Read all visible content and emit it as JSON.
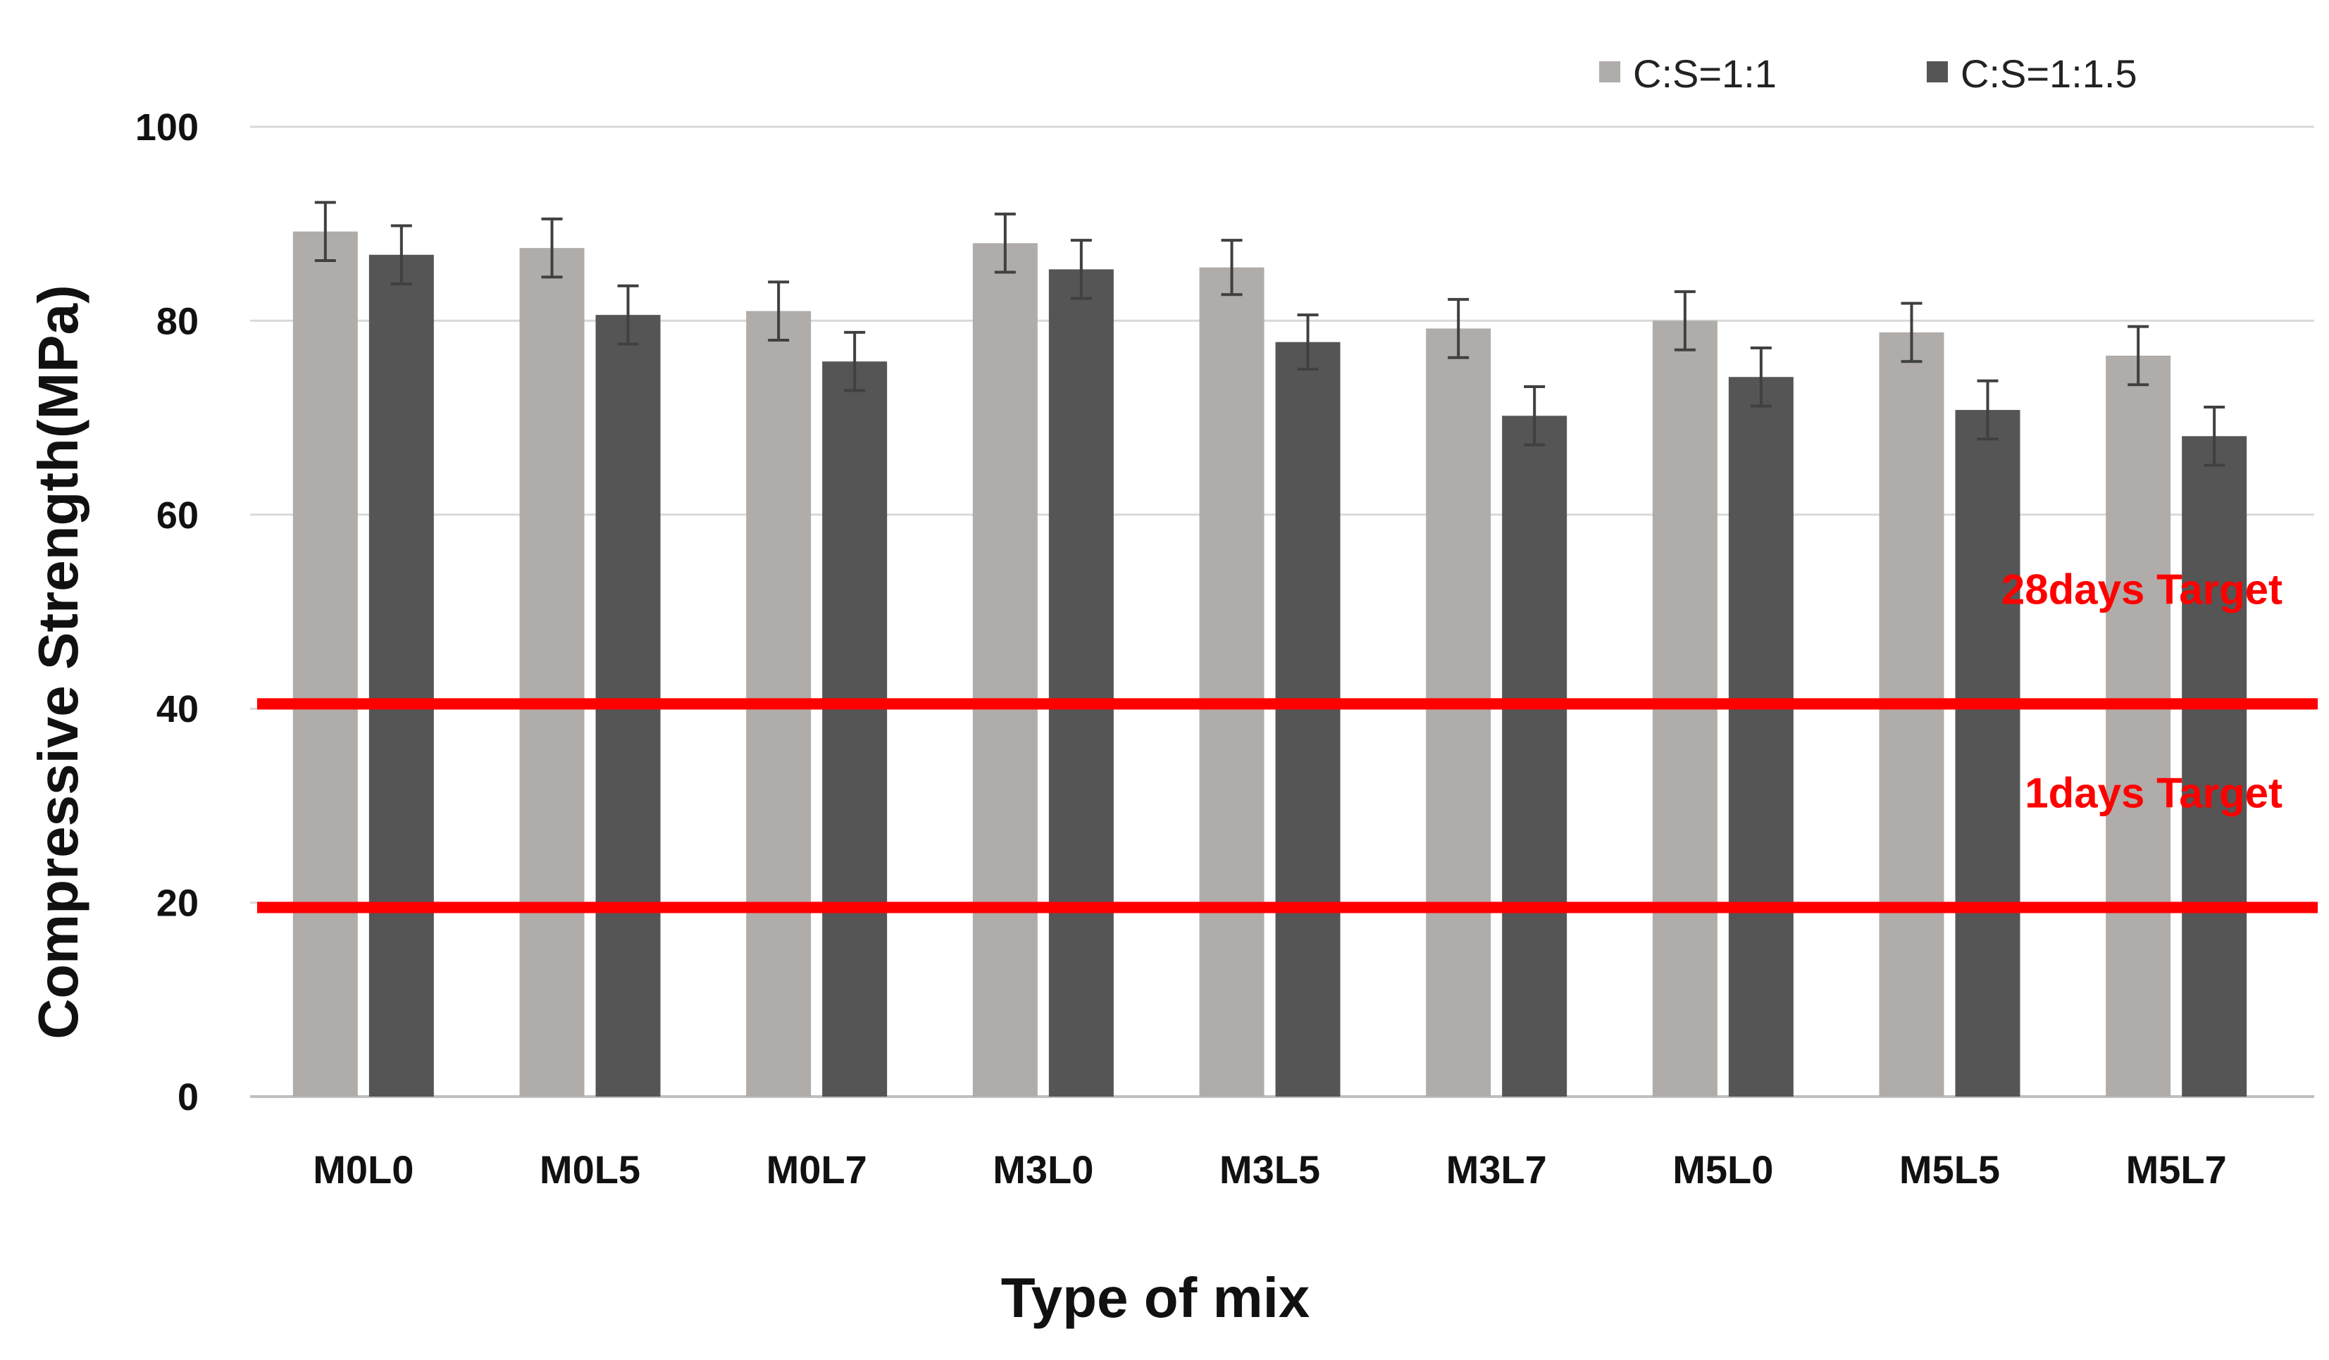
{
  "chart_data": {
    "type": "bar",
    "title": "",
    "xlabel": "Type of mix",
    "ylabel": "Compressive Strength(MPa)",
    "ylim": [
      0,
      100
    ],
    "yticks": [
      0,
      20,
      40,
      60,
      80,
      100
    ],
    "grid": true,
    "legend_position": "top-right",
    "categories": [
      "M0L0",
      "M0L5",
      "M0L7",
      "M3L0",
      "M3L5",
      "M3L7",
      "M5L0",
      "M5L5",
      "M5L7"
    ],
    "series": [
      {
        "name": "C:S=1:1",
        "color": "#b0acaa",
        "values": [
          89.2,
          87.5,
          81.0,
          88.0,
          85.5,
          79.2,
          80.0,
          78.8,
          76.4
        ],
        "errors": [
          3.0,
          3.0,
          3.0,
          3.0,
          2.8,
          3.0,
          3.0,
          3.0,
          3.0
        ]
      },
      {
        "name": "C:S=1:1.5",
        "color": "#555555",
        "values": [
          86.8,
          80.6,
          75.8,
          85.3,
          77.8,
          70.2,
          74.2,
          70.8,
          68.1
        ],
        "errors": [
          3.0,
          3.0,
          3.0,
          3.0,
          2.8,
          3.0,
          3.0,
          3.0,
          3.0
        ]
      }
    ],
    "reference_lines": [
      {
        "label": "28days Target",
        "value": 40.5,
        "color": "#ff0000"
      },
      {
        "label": "1days Target",
        "value": 19.5,
        "color": "#ff0000"
      }
    ],
    "grid_color": "#d9d9d9",
    "axis_color": "#bfbfbf",
    "error_bar_color": "#404040"
  }
}
